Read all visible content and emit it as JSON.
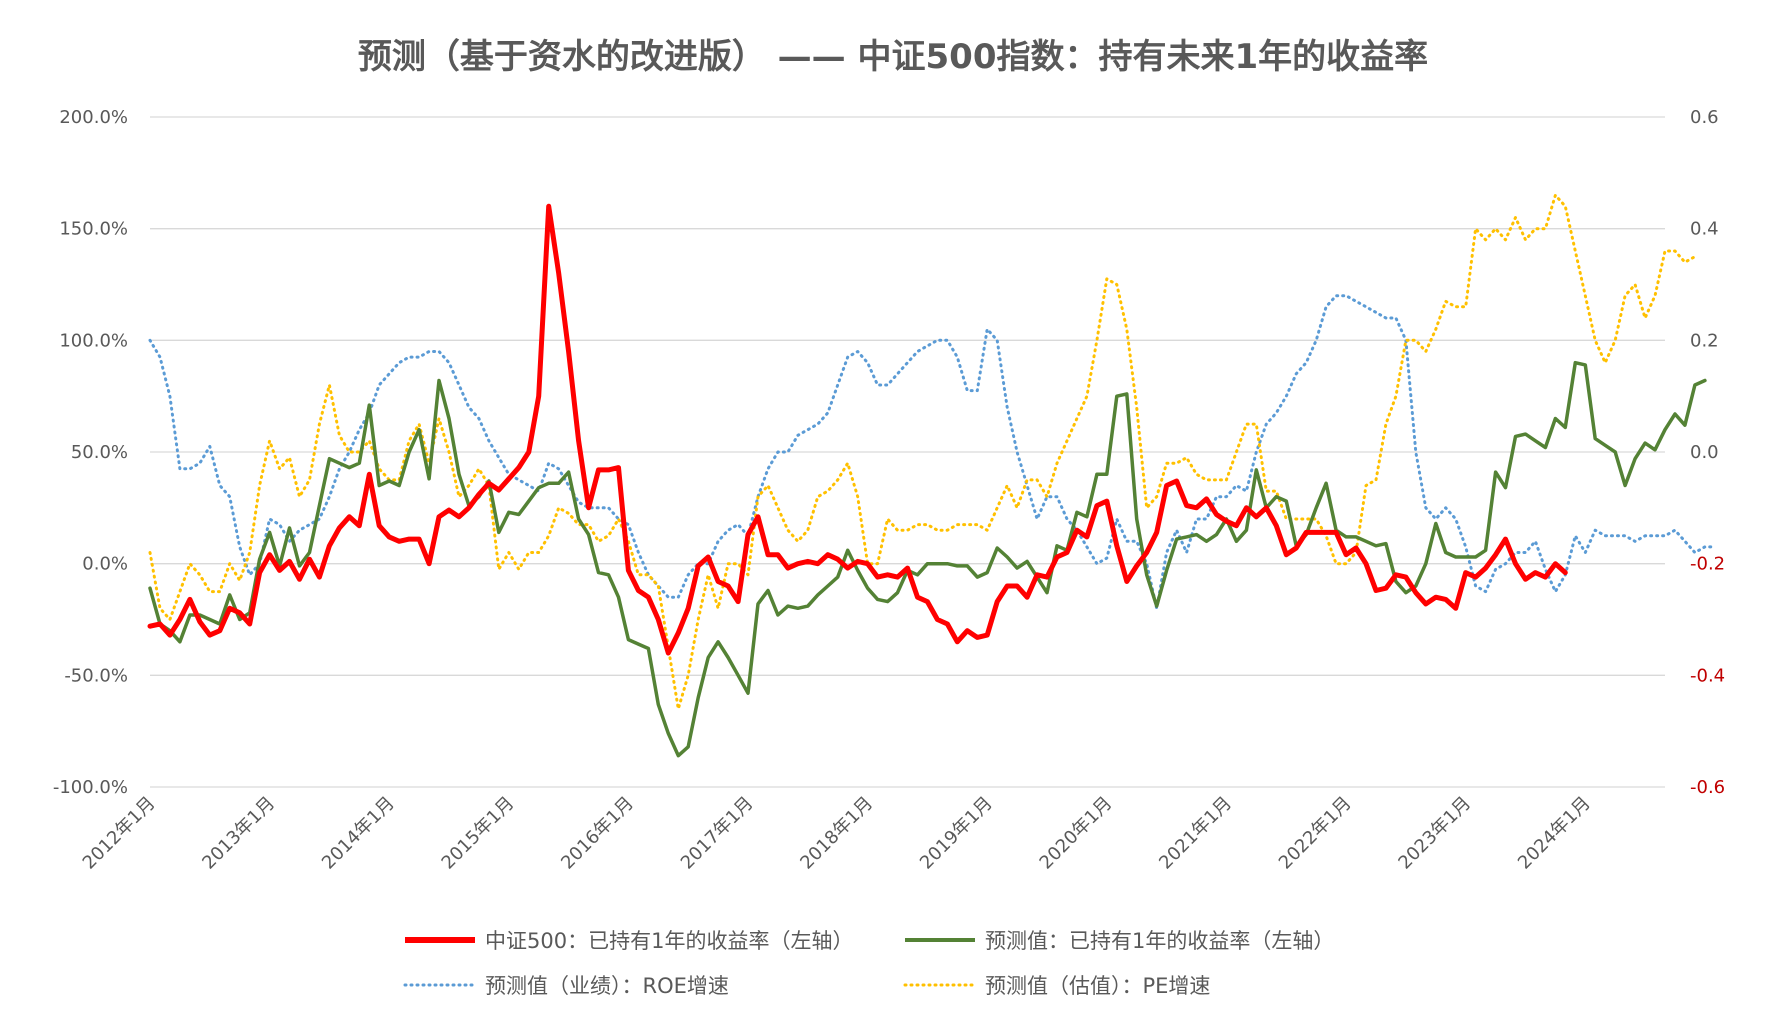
{
  "colors": {
    "csi500": "#ff0000",
    "pred": "#548235",
    "roe": "#5b9bd5",
    "pe": "#ffc000",
    "text": "#595959",
    "grid": "#d9d9d9",
    "right_neg": "#c00000"
  },
  "chart_data": {
    "type": "line",
    "title": "预测（基于资水的改进版） —— 中证500指数：持有未来1年的收益率",
    "y_left": {
      "ticks": [
        "200.0%",
        "150.0%",
        "100.0%",
        "50.0%",
        "0.0%",
        "-50.0%",
        "-100.0%"
      ],
      "ylim": [
        -100,
        200
      ],
      "unit": "%"
    },
    "y_right": {
      "ticks": [
        "0.6",
        "0.4",
        "0.2",
        "0.0",
        "-0.2",
        "-0.4",
        "-0.6"
      ],
      "ylim": [
        -0.6,
        0.6
      ]
    },
    "x_ticks": [
      "2012年1月",
      "2013年1月",
      "2014年1月",
      "2015年1月",
      "2016年1月",
      "2017年1月",
      "2018年1月",
      "2019年1月",
      "2020年1月",
      "2021年1月",
      "2022年1月",
      "2023年1月",
      "2024年1月"
    ],
    "x_start": "2012年1月",
    "legend_position": "bottom",
    "grid": true,
    "series": [
      {
        "name": "中证500：已持有1年的收益率（左轴）",
        "axis": "left",
        "style": "solid",
        "color": "#ff0000",
        "x_offset": 0,
        "values": [
          -28,
          -27,
          -32,
          -25,
          -16,
          -26,
          -32,
          -30,
          -20,
          -22,
          -27,
          -4,
          4,
          -3,
          1,
          -7,
          2,
          -6,
          8,
          16,
          21,
          17,
          40,
          17,
          12,
          10,
          11,
          11,
          0,
          21,
          24,
          21,
          25,
          31,
          36,
          33,
          38,
          43,
          50,
          75,
          160,
          130,
          95,
          55,
          25,
          42,
          42,
          43,
          -3,
          -12,
          -15,
          -25,
          -40,
          -31,
          -20,
          -1,
          3,
          -8,
          -10,
          -17,
          13,
          21,
          4,
          4,
          -2,
          0,
          1,
          0,
          4,
          2,
          -2,
          1,
          0,
          -6,
          -5,
          -6,
          -2,
          -15,
          -17,
          -25,
          -27,
          -35,
          -30,
          -33,
          -32,
          -17,
          -10,
          -10,
          -15,
          -5,
          -6,
          3,
          5,
          15,
          12,
          26,
          28,
          8,
          -8,
          -1,
          5,
          14,
          35,
          37,
          26,
          25,
          29,
          22,
          19,
          17,
          25,
          21,
          25,
          17,
          4,
          7,
          14,
          14,
          14,
          14,
          4,
          7,
          0,
          -12,
          -11,
          -5,
          -6,
          -13,
          -18,
          -15,
          -16,
          -20,
          -4,
          -6,
          -2,
          4,
          11,
          0,
          -7,
          -4,
          -6,
          0,
          -4
        ]
      },
      {
        "name": "预测值：已持有1年的收益率（左轴）",
        "axis": "left",
        "style": "solid",
        "color": "#548235",
        "x_offset": 0,
        "values": [
          -11,
          -27,
          -30,
          -35,
          -23,
          -23,
          -25,
          -27,
          -14,
          -25,
          -22,
          2,
          14,
          -1,
          16,
          -1,
          5,
          26,
          47,
          45,
          43,
          45,
          71,
          35,
          37,
          35,
          50,
          60,
          38,
          82,
          65,
          40,
          26,
          30,
          37,
          14,
          23,
          22,
          28,
          34,
          36,
          36,
          41,
          20,
          13,
          -4,
          -5,
          -15,
          -34,
          -36,
          -38,
          -63,
          -76,
          -86,
          -82,
          -60,
          -42,
          -35,
          -42,
          -50,
          -58,
          -18,
          -12,
          -23,
          -19,
          -20,
          -19,
          -14,
          -10,
          -6,
          6,
          -3,
          -11,
          -16,
          -17,
          -13,
          -3,
          -5,
          0,
          0,
          0,
          -1,
          -1,
          -6,
          -4,
          7,
          3,
          -2,
          1,
          -6,
          -13,
          8,
          6,
          23,
          21,
          40,
          40,
          75,
          76,
          20,
          -5,
          -19,
          -3,
          11,
          12,
          13,
          10,
          13,
          20,
          10,
          15,
          42,
          25,
          30,
          28,
          8,
          13,
          25,
          36,
          15,
          12,
          12,
          10,
          8,
          9,
          -8,
          -13,
          -10,
          0,
          18,
          5,
          3,
          3,
          3,
          6,
          41,
          34,
          57,
          58,
          55,
          52,
          65,
          61,
          90,
          89,
          56,
          53,
          50,
          35,
          47,
          54,
          51,
          60,
          67,
          62,
          80,
          82
        ]
      },
      {
        "name": "预测值（业绩）：ROE增速",
        "axis": "right",
        "style": "dotted",
        "color": "#5b9bd5",
        "x_offset": 0,
        "values": [
          0.2,
          0.17,
          0.1,
          -0.03,
          -0.03,
          -0.02,
          0.01,
          -0.06,
          -0.08,
          -0.17,
          -0.22,
          -0.2,
          -0.12,
          -0.13,
          -0.16,
          -0.14,
          -0.13,
          -0.12,
          -0.08,
          -0.03,
          0.0,
          0.04,
          0.07,
          0.12,
          0.14,
          0.16,
          0.17,
          0.17,
          0.18,
          0.18,
          0.16,
          0.12,
          0.08,
          0.06,
          0.02,
          -0.01,
          -0.04,
          -0.05,
          -0.06,
          -0.07,
          -0.02,
          -0.03,
          -0.06,
          -0.09,
          -0.1,
          -0.1,
          -0.1,
          -0.12,
          -0.13,
          -0.18,
          -0.22,
          -0.24,
          -0.26,
          -0.26,
          -0.22,
          -0.2,
          -0.2,
          -0.16,
          -0.14,
          -0.13,
          -0.15,
          -0.08,
          -0.03,
          0.0,
          0.0,
          0.03,
          0.04,
          0.05,
          0.07,
          0.12,
          0.17,
          0.18,
          0.16,
          0.12,
          0.12,
          0.14,
          0.16,
          0.18,
          0.19,
          0.2,
          0.2,
          0.17,
          0.11,
          0.11,
          0.22,
          0.2,
          0.08,
          0.0,
          -0.06,
          -0.12,
          -0.08,
          -0.08,
          -0.12,
          -0.14,
          -0.17,
          -0.2,
          -0.19,
          -0.12,
          -0.16,
          -0.16,
          -0.2,
          -0.28,
          -0.18,
          -0.14,
          -0.18,
          -0.12,
          -0.12,
          -0.08,
          -0.08,
          -0.06,
          -0.07,
          0.0,
          0.05,
          0.07,
          0.1,
          0.14,
          0.16,
          0.2,
          0.26,
          0.28,
          0.28,
          0.27,
          0.26,
          0.25,
          0.24,
          0.24,
          0.2,
          0.0,
          -0.1,
          -0.12,
          -0.1,
          -0.12,
          -0.17,
          -0.24,
          -0.25,
          -0.21,
          -0.2,
          -0.18,
          -0.18,
          -0.16,
          -0.21,
          -0.25,
          -0.22,
          -0.15,
          -0.18,
          -0.14,
          -0.15,
          -0.15,
          -0.15,
          -0.16,
          -0.15,
          -0.15,
          -0.15,
          -0.14,
          -0.16,
          -0.18,
          -0.17,
          -0.17
        ]
      },
      {
        "name": "预测值（估值）：PE增速",
        "axis": "right",
        "style": "dotted",
        "color": "#ffc000",
        "x_offset": 0,
        "values": [
          -0.18,
          -0.28,
          -0.3,
          -0.25,
          -0.2,
          -0.22,
          -0.25,
          -0.25,
          -0.2,
          -0.23,
          -0.18,
          -0.06,
          0.02,
          -0.03,
          -0.01,
          -0.08,
          -0.05,
          0.05,
          0.12,
          0.03,
          0.0,
          0.0,
          0.02,
          -0.03,
          -0.05,
          -0.05,
          0.02,
          0.05,
          -0.02,
          0.06,
          0.0,
          -0.08,
          -0.06,
          -0.03,
          -0.06,
          -0.21,
          -0.18,
          -0.21,
          -0.18,
          -0.18,
          -0.15,
          -0.1,
          -0.11,
          -0.13,
          -0.13,
          -0.16,
          -0.15,
          -0.12,
          -0.16,
          -0.22,
          -0.22,
          -0.24,
          -0.35,
          -0.46,
          -0.4,
          -0.3,
          -0.22,
          -0.28,
          -0.2,
          -0.2,
          -0.22,
          -0.08,
          -0.06,
          -0.1,
          -0.14,
          -0.16,
          -0.14,
          -0.08,
          -0.07,
          -0.05,
          -0.02,
          -0.08,
          -0.2,
          -0.2,
          -0.12,
          -0.14,
          -0.14,
          -0.13,
          -0.13,
          -0.14,
          -0.14,
          -0.13,
          -0.13,
          -0.13,
          -0.14,
          -0.1,
          -0.06,
          -0.1,
          -0.05,
          -0.05,
          -0.08,
          -0.02,
          0.02,
          0.06,
          0.1,
          0.2,
          0.31,
          0.3,
          0.22,
          0.08,
          -0.1,
          -0.08,
          -0.02,
          -0.02,
          -0.01,
          -0.04,
          -0.05,
          -0.05,
          -0.05,
          0.0,
          0.05,
          0.05,
          -0.07,
          -0.07,
          -0.12,
          -0.12,
          -0.12,
          -0.12,
          -0.15,
          -0.2,
          -0.2,
          -0.18,
          -0.06,
          -0.05,
          0.05,
          0.1,
          0.2,
          0.2,
          0.18,
          0.22,
          0.27,
          0.26,
          0.26,
          0.4,
          0.38,
          0.4,
          0.38,
          0.42,
          0.38,
          0.4,
          0.4,
          0.46,
          0.44,
          0.36,
          0.28,
          0.2,
          0.16,
          0.2,
          0.28,
          0.3,
          0.24,
          0.28,
          0.36,
          0.36,
          0.34,
          0.35
        ]
      }
    ]
  },
  "legend": [
    {
      "label": "中证500：已持有1年的收益率（左轴）",
      "style": "solid",
      "color": "#ff0000",
      "width": 6
    },
    {
      "label": "预测值：已持有1年的收益率（左轴）",
      "style": "solid",
      "color": "#548235",
      "width": 4
    },
    {
      "label": "预测值（业绩）：ROE增速",
      "style": "dotted",
      "color": "#5b9bd5",
      "width": 3
    },
    {
      "label": "预测值（估值）：PE增速",
      "style": "dotted",
      "color": "#ffc000",
      "width": 3
    }
  ]
}
